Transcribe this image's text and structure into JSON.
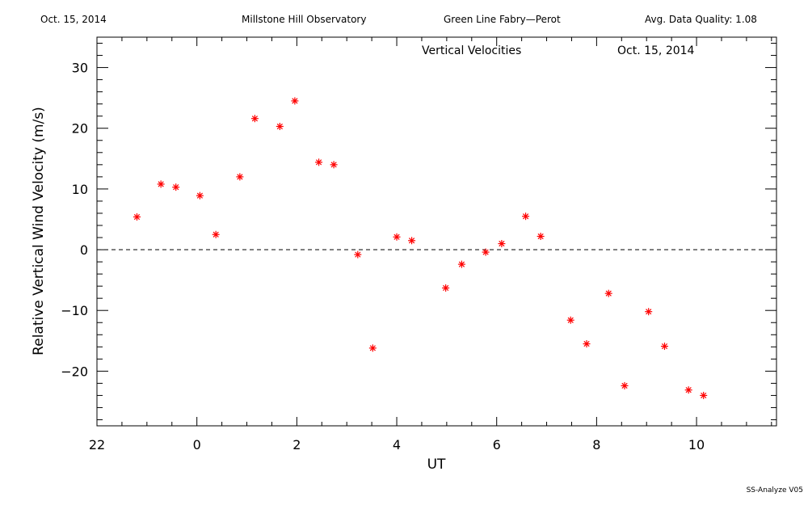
{
  "header": {
    "date": "Oct. 15, 2014",
    "observatory": "Millstone Hill Observatory",
    "instrument": "Green Line Fabry—Perot",
    "quality": "Avg. Data Quality: 1.08"
  },
  "footer": "SS-Analyze V05",
  "chart_data": {
    "type": "scatter",
    "title": "Vertical Velocities",
    "subtitle": "Oct. 15, 2014",
    "xlabel": "UT",
    "ylabel": "Relative Vertical Wind Velocity (m/s)",
    "xlim": [
      22.0,
      35.6
    ],
    "ylim": [
      -29,
      35
    ],
    "x_tick_labels": [
      "22",
      "0",
      "2",
      "4",
      "6",
      "8",
      "10"
    ],
    "x_tick_values": [
      22,
      24,
      26,
      28,
      30,
      32,
      34
    ],
    "y_tick_values": [
      -20,
      -10,
      0,
      10,
      20,
      30
    ],
    "y_tick_labels": [
      "−20",
      "−10",
      "0",
      "10",
      "20",
      "30"
    ],
    "zero_line": "dashed",
    "marker": "asterisk",
    "marker_color": "#ff0000",
    "series": [
      {
        "x": [
          22.8,
          23.28,
          23.58,
          24.06,
          24.38,
          24.86,
          25.16,
          25.66,
          25.96,
          26.44,
          26.74,
          27.22,
          27.52,
          28.0,
          28.3,
          28.98,
          29.3,
          29.78,
          30.1,
          30.58,
          30.88,
          31.48,
          31.8,
          32.24,
          32.56,
          33.04,
          33.36,
          33.84,
          34.14
        ],
        "y": [
          5.4,
          10.8,
          10.3,
          8.9,
          2.5,
          12.0,
          21.6,
          20.3,
          24.5,
          14.4,
          14.0,
          -0.8,
          -16.2,
          2.1,
          1.5,
          -6.3,
          -2.4,
          -0.4,
          1.0,
          5.5,
          2.2,
          -11.6,
          -15.5,
          -7.2,
          -22.4,
          -10.2,
          -15.9,
          -23.1,
          -24.0
        ]
      }
    ]
  }
}
